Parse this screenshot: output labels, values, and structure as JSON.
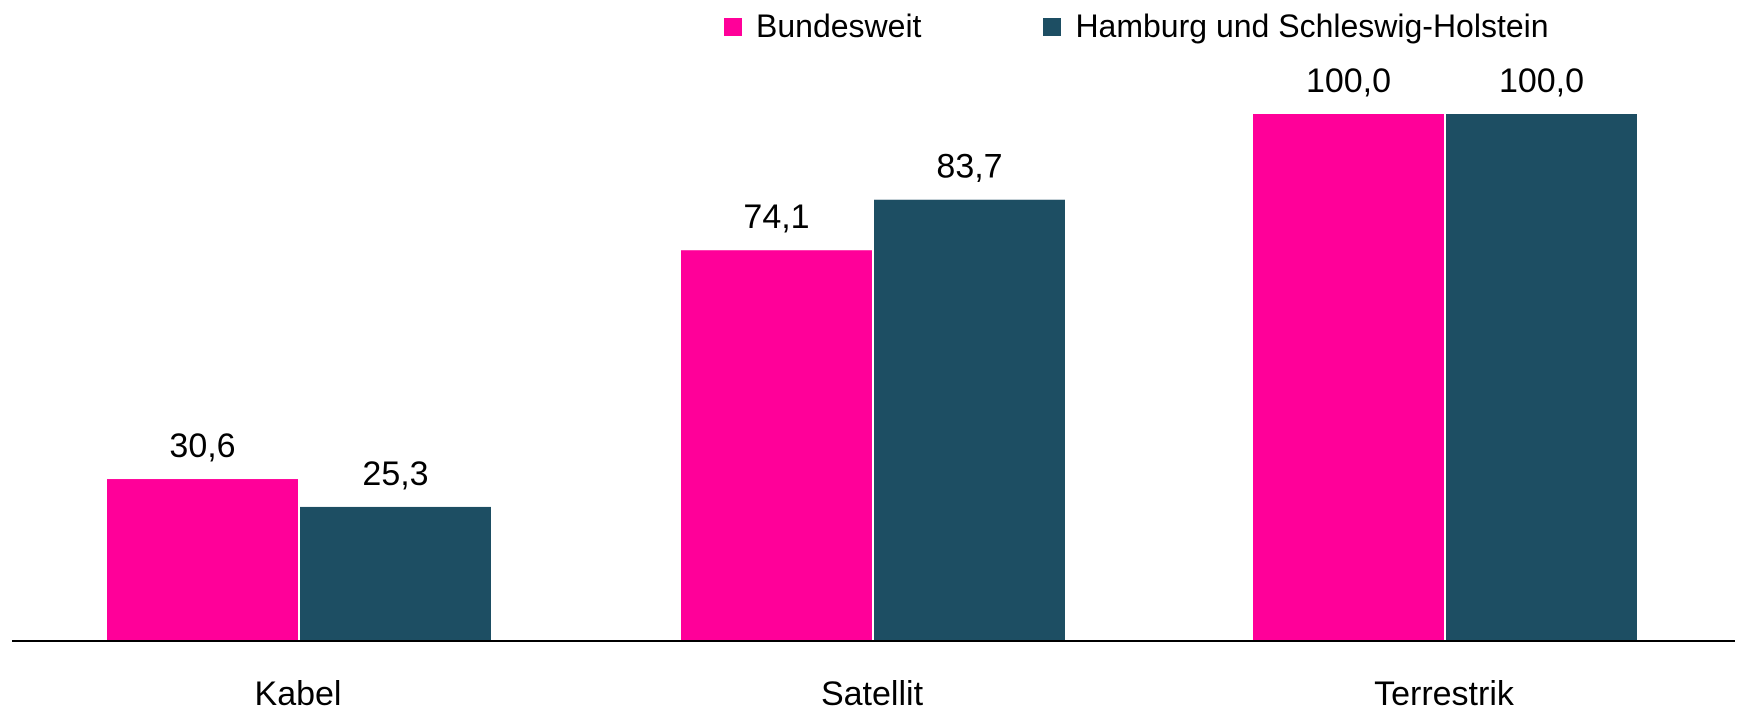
{
  "colors": {
    "bundesweit": "#FF0099",
    "hamburg_sh": "#1D4E63",
    "axis": "#000000",
    "text": "#000000"
  },
  "legend": {
    "position": "top-right",
    "items": [
      {
        "label": "Bundesweit",
        "color": "#FF0099"
      },
      {
        "label": "Hamburg und Schleswig-Holstein",
        "color": "#1D4E63"
      }
    ]
  },
  "chart_data": {
    "type": "bar",
    "title": "",
    "xlabel": "",
    "ylabel": "",
    "grid": false,
    "ylim": [
      0,
      100
    ],
    "categories": [
      "Kabel",
      "Satellit",
      "Terrestrik"
    ],
    "series": [
      {
        "name": "Bundesweit",
        "values": [
          30.6,
          74.1,
          100.0
        ],
        "labels": [
          "30,6",
          "74,1",
          "100,0"
        ]
      },
      {
        "name": "Hamburg und Schleswig-Holstein",
        "values": [
          25.3,
          83.7,
          100.0
        ],
        "labels": [
          "25,3",
          "83,7",
          "100,0"
        ]
      }
    ]
  }
}
